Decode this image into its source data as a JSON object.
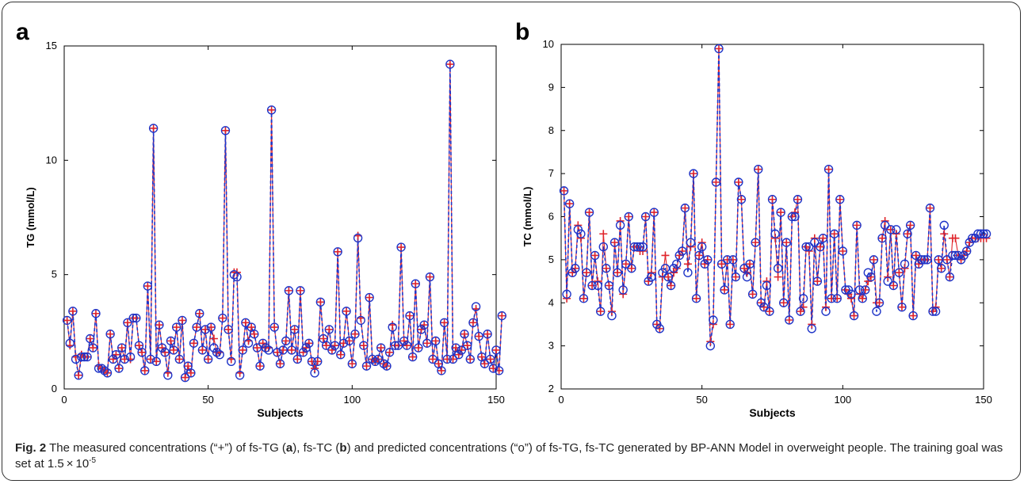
{
  "caption": {
    "fig": "Fig. 2",
    "t1": " The measured concentrations (“+”) of fs-TG (",
    "a": "a",
    "t2": "), fs-TC (",
    "b": "b",
    "t3": ") and predicted concentrations (“o”) of fs-TG, fs-TC generated by BP-ANN Model in overweight people. The training goal was set at 1.5 × 10",
    "exp": "-5"
  },
  "colors": {
    "measured": "#e0242a",
    "predicted": "#1f35c8",
    "axis": "#000000"
  },
  "chart_data": [
    {
      "panel": "a",
      "type": "line",
      "xlabel": "Subjects",
      "ylabel": "TG (mmol/L)",
      "xlim": [
        0,
        150
      ],
      "ylim": [
        0,
        15
      ],
      "xticks": [
        0,
        50,
        100,
        150
      ],
      "yticks": [
        0,
        5,
        10,
        15
      ],
      "grid": false,
      "series": [
        {
          "marker": "+",
          "color": "#e0242a",
          "values": [
            3.0,
            1.9,
            3.4,
            1.4,
            0.6,
            1.5,
            1.4,
            1.4,
            2.2,
            1.8,
            3.3,
            1.0,
            0.9,
            0.8,
            0.7,
            2.4,
            1.3,
            1.5,
            0.9,
            1.8,
            1.3,
            2.9,
            1.3,
            3.1,
            3.1,
            1.9,
            1.6,
            0.8,
            4.5,
            1.3,
            11.4,
            1.2,
            2.8,
            1.8,
            1.6,
            0.7,
            2.1,
            1.7,
            2.7,
            1.3,
            3.0,
            0.5,
            1.0,
            0.7,
            2.0,
            2.7,
            3.3,
            1.7,
            2.6,
            1.3,
            2.7,
            2.2,
            1.6,
            1.6,
            3.1,
            11.3,
            2.6,
            1.3,
            5.1,
            5.1,
            0.7,
            1.7,
            2.9,
            2.1,
            2.7,
            2.4,
            1.8,
            1.0,
            2.0,
            1.8,
            1.8,
            12.2,
            2.7,
            1.6,
            1.1,
            1.7,
            2.1,
            4.3,
            1.7,
            2.6,
            1.3,
            4.3,
            1.6,
            1.8,
            2.0,
            1.2,
            0.9,
            1.2,
            3.8,
            2.2,
            1.9,
            2.6,
            1.7,
            1.9,
            6.0,
            1.5,
            2.0,
            3.4,
            2.1,
            1.1,
            2.4,
            6.7,
            3.1,
            1.9,
            1.0,
            4.0,
            1.3,
            1.2,
            1.3,
            1.8,
            1.1,
            1.0,
            1.6,
            2.8,
            1.9,
            1.9,
            6.2,
            2.1,
            1.9,
            3.2,
            1.4,
            4.6,
            1.8,
            2.6,
            2.8,
            2.0,
            4.9,
            1.3,
            2.1,
            1.1,
            0.8,
            2.9,
            1.3,
            14.2,
            1.3,
            1.8,
            1.5,
            1.7,
            2.4,
            1.9,
            1.3,
            2.9,
            3.5,
            2.3,
            1.4,
            1.1,
            2.4,
            1.3,
            0.9,
            1.7,
            0.8,
            3.2
          ]
        },
        {
          "marker": "o",
          "color": "#1f35c8",
          "values": [
            3.0,
            2.0,
            3.4,
            1.3,
            0.6,
            1.4,
            1.4,
            1.4,
            2.2,
            1.8,
            3.3,
            0.9,
            0.9,
            0.8,
            0.7,
            2.4,
            1.3,
            1.5,
            0.9,
            1.8,
            1.3,
            2.9,
            1.4,
            3.1,
            3.1,
            1.9,
            1.6,
            0.8,
            4.5,
            1.3,
            11.4,
            1.2,
            2.8,
            1.8,
            1.6,
            0.6,
            2.1,
            1.7,
            2.7,
            1.3,
            3.0,
            0.5,
            1.0,
            0.7,
            2.0,
            2.7,
            3.3,
            1.7,
            2.6,
            1.3,
            2.7,
            1.8,
            1.6,
            1.5,
            3.1,
            11.3,
            2.6,
            1.2,
            5.0,
            4.9,
            0.6,
            1.7,
            2.9,
            2.0,
            2.7,
            2.4,
            1.8,
            1.0,
            2.0,
            1.8,
            1.7,
            12.2,
            2.7,
            1.6,
            1.1,
            1.7,
            2.1,
            4.3,
            1.7,
            2.6,
            1.3,
            4.3,
            1.6,
            1.8,
            2.0,
            1.2,
            0.7,
            1.2,
            3.8,
            2.2,
            1.9,
            2.6,
            1.7,
            1.9,
            6.0,
            1.5,
            2.0,
            3.4,
            2.1,
            1.1,
            2.4,
            6.6,
            3.0,
            1.9,
            1.0,
            4.0,
            1.3,
            1.2,
            1.3,
            1.8,
            1.1,
            1.0,
            1.6,
            2.7,
            1.9,
            1.9,
            6.2,
            2.1,
            1.9,
            3.2,
            1.4,
            4.6,
            1.8,
            2.6,
            2.8,
            2.0,
            4.9,
            1.3,
            2.1,
            1.1,
            0.8,
            2.9,
            1.3,
            14.2,
            1.3,
            1.8,
            1.5,
            1.7,
            2.4,
            1.9,
            1.3,
            2.9,
            3.6,
            2.3,
            1.4,
            1.1,
            2.4,
            1.3,
            0.9,
            1.7,
            0.8,
            3.2
          ]
        }
      ]
    },
    {
      "panel": "b",
      "type": "line",
      "xlabel": "Subjects",
      "ylabel": "TC (mmol/L)",
      "xlim": [
        0,
        150
      ],
      "ylim": [
        2,
        10
      ],
      "xticks": [
        0,
        50,
        100,
        150
      ],
      "yticks": [
        2,
        3,
        4,
        5,
        6,
        7,
        8,
        9,
        10
      ],
      "grid": false,
      "series": [
        {
          "marker": "+",
          "color": "#e0242a",
          "values": [
            6.6,
            4.1,
            6.3,
            4.7,
            4.8,
            5.8,
            5.5,
            4.1,
            4.7,
            6.1,
            4.4,
            5.1,
            4.5,
            3.8,
            5.6,
            4.8,
            4.4,
            3.8,
            5.4,
            4.7,
            5.9,
            4.2,
            4.9,
            6.0,
            4.8,
            5.3,
            5.3,
            5.2,
            5.2,
            6.0,
            4.5,
            4.7,
            6.1,
            3.5,
            3.4,
            4.6,
            5.1,
            4.6,
            4.4,
            4.7,
            4.8,
            5.1,
            5.2,
            6.2,
            4.9,
            5.3,
            7.0,
            4.1,
            5.1,
            5.4,
            4.9,
            5.0,
            3.1,
            3.5,
            6.8,
            9.9,
            4.9,
            4.3,
            5.0,
            3.5,
            5.0,
            4.6,
            6.8,
            6.4,
            4.8,
            4.7,
            4.9,
            4.2,
            5.4,
            7.1,
            4.0,
            3.9,
            4.5,
            3.8,
            6.4,
            5.5,
            4.6,
            6.1,
            4.0,
            5.4,
            3.6,
            6.0,
            6.1,
            6.4,
            3.8,
            3.9,
            5.3,
            5.2,
            3.5,
            5.5,
            4.5,
            5.3,
            5.5,
            3.9,
            7.1,
            4.1,
            5.6,
            4.1,
            6.4,
            5.2,
            4.3,
            4.2,
            4.1,
            3.7,
            5.8,
            4.2,
            4.1,
            4.3,
            4.5,
            4.6,
            5.0,
            4.0,
            4.0,
            5.5,
            5.9,
            4.6,
            5.7,
            4.4,
            5.6,
            4.7,
            3.9,
            4.8,
            5.6,
            5.8,
            3.7,
            5.1,
            4.9,
            5.0,
            5.0,
            5.0,
            6.2,
            3.8,
            3.9,
            5.0,
            4.8,
            5.6,
            5.0,
            4.6,
            5.5,
            5.5,
            5.1,
            5.0,
            5.1,
            5.2,
            5.4,
            5.5,
            5.5,
            5.5,
            5.5,
            5.5,
            5.5
          ]
        },
        {
          "marker": "o",
          "color": "#1f35c8",
          "values": [
            6.6,
            4.2,
            6.3,
            4.7,
            4.8,
            5.7,
            5.6,
            4.1,
            4.7,
            6.1,
            4.4,
            5.1,
            4.4,
            3.8,
            5.3,
            4.8,
            4.4,
            3.7,
            5.4,
            4.7,
            5.8,
            4.3,
            4.9,
            6.0,
            4.8,
            5.3,
            5.3,
            5.3,
            5.3,
            6.0,
            4.5,
            4.6,
            6.1,
            3.5,
            3.4,
            4.7,
            4.8,
            4.6,
            4.4,
            4.8,
            4.9,
            5.1,
            5.2,
            6.2,
            4.7,
            5.4,
            7.0,
            4.1,
            5.1,
            5.3,
            4.9,
            5.0,
            3.0,
            3.6,
            6.8,
            9.9,
            4.9,
            4.3,
            5.0,
            3.5,
            5.0,
            4.6,
            6.8,
            6.4,
            4.8,
            4.6,
            4.9,
            4.2,
            5.4,
            7.1,
            4.0,
            3.9,
            4.4,
            3.8,
            6.4,
            5.6,
            4.8,
            6.1,
            4.0,
            5.4,
            3.6,
            6.0,
            6.0,
            6.4,
            3.8,
            4.1,
            5.3,
            5.3,
            3.4,
            5.4,
            4.5,
            5.3,
            5.5,
            3.8,
            7.1,
            4.1,
            5.6,
            4.1,
            6.4,
            5.2,
            4.3,
            4.3,
            4.2,
            3.7,
            5.8,
            4.3,
            4.1,
            4.3,
            4.7,
            4.6,
            5.0,
            3.8,
            4.0,
            5.5,
            5.8,
            4.5,
            5.7,
            4.4,
            5.7,
            4.7,
            3.9,
            4.9,
            5.6,
            5.8,
            3.7,
            5.1,
            4.9,
            5.0,
            5.0,
            5.0,
            6.2,
            3.8,
            3.8,
            5.0,
            4.8,
            5.8,
            5.0,
            4.6,
            5.1,
            5.1,
            5.1,
            5.0,
            5.1,
            5.2,
            5.4,
            5.5,
            5.5,
            5.6,
            5.6,
            5.6,
            5.6
          ]
        }
      ]
    }
  ],
  "panel_labels": {
    "a": "a",
    "b": "b"
  }
}
